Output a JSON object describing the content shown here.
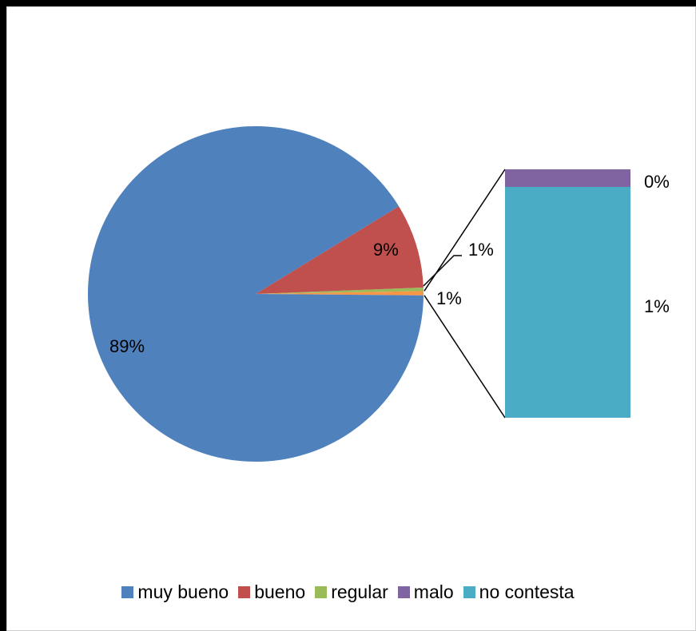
{
  "chart_data": {
    "type": "pie",
    "subtype": "bar-of-pie",
    "title": "",
    "legend_position": "bottom",
    "series": [
      {
        "name": "muy bueno",
        "value": 89,
        "label": "89%",
        "color": "#4F81BD"
      },
      {
        "name": "bueno",
        "value": 9,
        "label": "9%",
        "color": "#C0504D"
      },
      {
        "name": "regular",
        "value": 1,
        "label": "1%",
        "color": "#9BBB59"
      },
      {
        "name": "malo",
        "value": 0,
        "label": "0%",
        "color": "#8064A2"
      },
      {
        "name": "no contesta",
        "value": 1,
        "label": "1%",
        "color": "#4BACC6"
      }
    ],
    "other_slice": {
      "label": "1%",
      "color": "#F79646"
    },
    "secondary_bar": {
      "segments": [
        {
          "name": "malo",
          "value": 0,
          "label": "0%",
          "color": "#8064A2"
        },
        {
          "name": "no contesta",
          "value": 1,
          "label": "1%",
          "color": "#4BACC6"
        }
      ]
    }
  }
}
